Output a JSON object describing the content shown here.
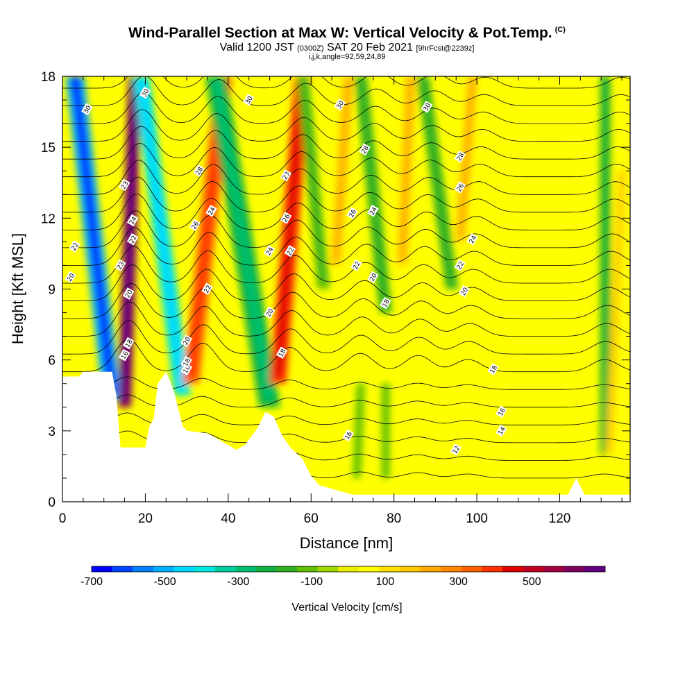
{
  "title": {
    "main": "Wind-Parallel Section at Max W: Vertical Velocity & Pot.Temp.",
    "main_suffix": "(C)",
    "line2_a": "Valid 1200 JST",
    "line2_b": "(0300Z)",
    "line2_c": "SAT 20 Feb 2021",
    "line2_d": "[9hrFcst@2239z]",
    "line3": "i,j,k,angle=92,59,24,89"
  },
  "chart_data": {
    "type": "heatmap",
    "xlabel": "Distance [nm]",
    "ylabel": "Height [Kft MSL]",
    "xlim": [
      0,
      137
    ],
    "ylim": [
      0,
      18
    ],
    "x_ticks": [
      0,
      20,
      40,
      60,
      80,
      100,
      120
    ],
    "y_ticks": [
      0,
      3,
      6,
      9,
      12,
      15,
      18
    ],
    "grid": false,
    "colorbar": {
      "label": "Vertical Velocity [cm/s]",
      "tick_labels": [
        "-700",
        "-500",
        "-300",
        "-100",
        "100",
        "300",
        "500"
      ],
      "tick_values": [
        -700,
        -500,
        -300,
        -100,
        100,
        300,
        500
      ],
      "range": [
        -700,
        700
      ],
      "colors": [
        "#0000ff",
        "#0044ff",
        "#0080ff",
        "#00b0ff",
        "#00d8ff",
        "#00e8e0",
        "#00d0a0",
        "#00c070",
        "#10b040",
        "#30b020",
        "#60c000",
        "#a0d800",
        "#e8f000",
        "#ffff00",
        "#ffe000",
        "#ffc800",
        "#ffa800",
        "#ff8800",
        "#ff6000",
        "#ff3000",
        "#e00000",
        "#c00020",
        "#a00040",
        "#800060",
        "#600080"
      ]
    },
    "field_shading": {
      "background_level": 50,
      "bands": [
        {
          "x0": 12,
          "y0": 4.3,
          "x1": 3,
          "y1": 18,
          "w": 4.5,
          "value": -520
        },
        {
          "x0": 15,
          "y0": 4,
          "x1": 17.5,
          "y1": 18,
          "w": 3.2,
          "value": 620
        },
        {
          "x0": 29,
          "y0": 4.5,
          "x1": 19,
          "y1": 18,
          "w": 4,
          "value": -380
        },
        {
          "x0": 31,
          "y0": 5,
          "x1": 39,
          "y1": 18,
          "w": 4,
          "value": 320
        },
        {
          "x0": 50,
          "y0": 4,
          "x1": 37,
          "y1": 18,
          "w": 5,
          "value": -230
        },
        {
          "x0": 52,
          "y0": 5,
          "x1": 58,
          "y1": 18,
          "w": 4,
          "value": 380
        },
        {
          "x0": 63,
          "y0": 9,
          "x1": 58,
          "y1": 18,
          "w": 3,
          "value": -120
        },
        {
          "x0": 66,
          "y0": 10,
          "x1": 69,
          "y1": 18,
          "w": 2.5,
          "value": 180
        },
        {
          "x0": 78,
          "y0": 8,
          "x1": 72,
          "y1": 18,
          "w": 3,
          "value": -150
        },
        {
          "x0": 82,
          "y0": 10,
          "x1": 84,
          "y1": 18,
          "w": 2.5,
          "value": 170
        },
        {
          "x0": 94,
          "y0": 9,
          "x1": 87,
          "y1": 18,
          "w": 3,
          "value": -150
        },
        {
          "x0": 96,
          "y0": 11,
          "x1": 99,
          "y1": 18,
          "w": 2.5,
          "value": 160
        },
        {
          "x0": 71,
          "y0": 1,
          "x1": 72,
          "y1": 5,
          "w": 2,
          "value": -110
        },
        {
          "x0": 78,
          "y0": 1,
          "x1": 78,
          "y1": 5,
          "w": 2,
          "value": -110
        },
        {
          "x0": 131,
          "y0": 2,
          "x1": 131,
          "y1": 18,
          "w": 2.5,
          "value": -180
        },
        {
          "x0": 132,
          "y0": 2,
          "x1": 135,
          "y1": 14,
          "w": 2,
          "value": 130
        }
      ]
    },
    "terrain": [
      [
        0,
        5.3
      ],
      [
        4,
        5.3
      ],
      [
        5,
        5.5
      ],
      [
        12,
        5.5
      ],
      [
        13,
        4.5
      ],
      [
        14,
        2.3
      ],
      [
        20,
        2.3
      ],
      [
        21,
        3.2
      ],
      [
        22,
        3.5
      ],
      [
        23,
        5
      ],
      [
        25,
        5.5
      ],
      [
        26,
        5.1
      ],
      [
        27,
        4.6
      ],
      [
        28,
        3.9
      ],
      [
        29,
        3.2
      ],
      [
        30,
        3
      ],
      [
        35,
        2.9
      ],
      [
        42,
        2.2
      ],
      [
        44,
        2.4
      ],
      [
        47,
        3.1
      ],
      [
        49,
        3.8
      ],
      [
        51,
        3.6
      ],
      [
        53,
        2.8
      ],
      [
        55,
        2.3
      ],
      [
        58,
        1.8
      ],
      [
        60,
        1.1
      ],
      [
        62,
        0.7
      ],
      [
        70,
        0.3
      ],
      [
        110,
        0.3
      ],
      [
        122,
        0.3
      ],
      [
        124,
        1
      ],
      [
        126,
        0.3
      ],
      [
        137,
        0.3
      ]
    ],
    "contours": [
      {
        "level": 12,
        "label_at": [
          95,
          2.2
        ]
      },
      {
        "level": 14,
        "label_at": [
          106,
          3.0
        ]
      },
      {
        "level": 16,
        "label_at": [
          106,
          3.8
        ]
      },
      {
        "level": 16,
        "label_at": [
          69,
          2.8
        ]
      },
      {
        "level": 16,
        "label_at": [
          15,
          6.2
        ]
      },
      {
        "level": 16,
        "label_at": [
          30,
          5.6
        ]
      },
      {
        "level": 18,
        "label_at": [
          104,
          5.6
        ]
      },
      {
        "level": 18,
        "label_at": [
          16,
          6.7
        ]
      },
      {
        "level": 18,
        "label_at": [
          30,
          5.9
        ]
      },
      {
        "level": 18,
        "label_at": [
          53,
          6.3
        ]
      },
      {
        "level": 18,
        "label_at": [
          78,
          8.4
        ]
      },
      {
        "level": 20,
        "label_at": [
          2,
          9.5
        ]
      },
      {
        "level": 20,
        "label_at": [
          16,
          8.8
        ]
      },
      {
        "level": 20,
        "label_at": [
          30,
          6.8
        ]
      },
      {
        "level": 20,
        "label_at": [
          50,
          8.0
        ]
      },
      {
        "level": 20,
        "label_at": [
          75,
          9.5
        ]
      },
      {
        "level": 20,
        "label_at": [
          97,
          8.9
        ]
      },
      {
        "level": 22,
        "label_at": [
          3,
          10.8
        ]
      },
      {
        "level": 22,
        "label_at": [
          17,
          11.1
        ]
      },
      {
        "level": 22,
        "label_at": [
          35,
          9.0
        ]
      },
      {
        "level": 22,
        "label_at": [
          55,
          10.6
        ]
      },
      {
        "level": 22,
        "label_at": [
          71,
          10.0
        ]
      },
      {
        "level": 22,
        "label_at": [
          96,
          10.0
        ]
      },
      {
        "level": 23,
        "label_at": [
          14,
          10.0
        ]
      },
      {
        "level": 23,
        "label_at": [
          15,
          13.4
        ]
      },
      {
        "level": 23,
        "label_at": [
          54,
          13.8
        ]
      },
      {
        "level": 24,
        "label_at": [
          17,
          11.9
        ]
      },
      {
        "level": 24,
        "label_at": [
          36,
          12.3
        ]
      },
      {
        "level": 24,
        "label_at": [
          50,
          10.6
        ]
      },
      {
        "level": 24,
        "label_at": [
          75,
          12.3
        ]
      },
      {
        "level": 24,
        "label_at": [
          99,
          11.1
        ]
      },
      {
        "level": 26,
        "label_at": [
          32,
          11.7
        ]
      },
      {
        "level": 26,
        "label_at": [
          54,
          12.0
        ]
      },
      {
        "level": 26,
        "label_at": [
          70,
          12.2
        ]
      },
      {
        "level": 26,
        "label_at": [
          96,
          13.3
        ]
      },
      {
        "level": 28,
        "label_at": [
          33,
          14.0
        ]
      },
      {
        "level": 28,
        "label_at": [
          73,
          14.9
        ]
      },
      {
        "level": 28,
        "label_at": [
          96,
          14.6
        ]
      },
      {
        "level": 30,
        "label_at": [
          6,
          16.6
        ]
      },
      {
        "level": 30,
        "label_at": [
          20,
          17.3
        ]
      },
      {
        "level": 30,
        "label_at": [
          45,
          17.0
        ]
      },
      {
        "level": 30,
        "label_at": [
          67,
          16.8
        ]
      },
      {
        "level": 30,
        "label_at": [
          88,
          16.7
        ]
      }
    ]
  }
}
